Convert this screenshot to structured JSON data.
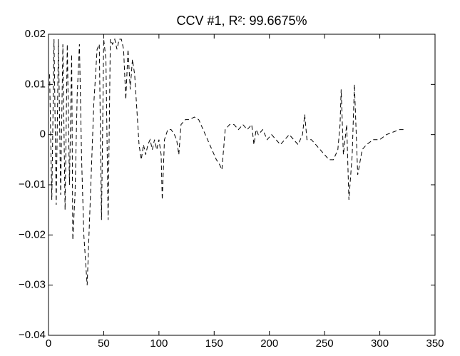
{
  "chart_data": {
    "type": "line",
    "title": "CCV #1, R²: 99.6675%",
    "x": [
      1,
      3,
      5,
      7,
      9,
      11,
      13,
      15,
      17,
      19,
      21,
      22,
      24,
      26,
      28,
      30,
      32,
      35,
      38,
      41,
      44,
      46,
      48,
      50,
      52,
      54,
      56,
      58,
      60,
      62,
      64,
      66,
      68,
      70,
      72,
      74,
      76,
      78,
      80,
      82,
      84,
      86,
      88,
      90,
      92,
      94,
      96,
      98,
      100,
      102,
      103,
      105,
      108,
      111,
      114,
      116,
      118,
      120,
      124,
      128,
      132,
      136,
      140,
      144,
      148,
      152,
      155,
      157,
      160,
      164,
      168,
      172,
      176,
      180,
      184,
      186,
      188,
      190,
      194,
      198,
      202,
      206,
      210,
      214,
      218,
      222,
      226,
      230,
      232,
      234,
      238,
      242,
      246,
      250,
      254,
      258,
      262,
      264,
      265,
      267,
      270,
      272,
      275,
      277,
      280,
      284,
      288,
      294,
      300,
      306,
      312,
      318,
      322
    ],
    "series": [
      {
        "color": "#000000",
        "values": [
          0.012,
          -0.013,
          0.019,
          -0.014,
          0.019,
          -0.012,
          0.018,
          -0.015,
          0.018,
          -0.01,
          0.016,
          -0.021,
          -0.012,
          0.008,
          0.018,
          -0.005,
          -0.02,
          -0.03,
          -0.012,
          0.006,
          0.017,
          0.018,
          -0.017,
          0.019,
          0.015,
          -0.017,
          0.019,
          0.018,
          0.019,
          0.017,
          0.019,
          0.019,
          0.017,
          0.007,
          0.017,
          0.009,
          0.015,
          0.012,
          0.005,
          -0.002,
          -0.005,
          -0.002,
          -0.004,
          -0.002,
          -0.001,
          -0.003,
          -0.001,
          -0.003,
          -0.001,
          -0.004,
          -0.013,
          -0.001,
          0.001,
          0.001,
          0,
          -0.001,
          -0.004,
          0.002,
          0.003,
          0.003,
          0.0035,
          0.003,
          0.001,
          -0.001,
          -0.003,
          -0.005,
          -0.006,
          -0.007,
          0.001,
          0.002,
          0.002,
          0.001,
          0.002,
          0.001,
          0.002,
          -0.002,
          0.001,
          0,
          0.001,
          -0.001,
          0,
          -0.001,
          -0.002,
          -0.001,
          0,
          -0.001,
          -0.002,
          0,
          0.004,
          -0.001,
          -0.001,
          -0.002,
          -0.003,
          -0.004,
          -0.005,
          -0.005,
          -0.003,
          0.002,
          0.009,
          -0.004,
          0.002,
          -0.013,
          -0.004,
          0.01,
          -0.008,
          -0.003,
          -0.002,
          -0.001,
          -0.001,
          0,
          0.0005,
          0.001,
          0.001
        ]
      }
    ],
    "xlim": [
      0,
      350
    ],
    "xticks": [
      0,
      50,
      100,
      150,
      200,
      250,
      300,
      350
    ],
    "ylim": [
      -0.04,
      0.02
    ],
    "yticks": [
      {
        "value": -0.04,
        "label": "−0.04"
      },
      {
        "value": -0.03,
        "label": "−0.03"
      },
      {
        "value": -0.02,
        "label": "−0.02"
      },
      {
        "value": -0.01,
        "label": "−0.01"
      },
      0,
      0.01,
      0.02
    ],
    "line_style": "dashed",
    "grid": false
  }
}
